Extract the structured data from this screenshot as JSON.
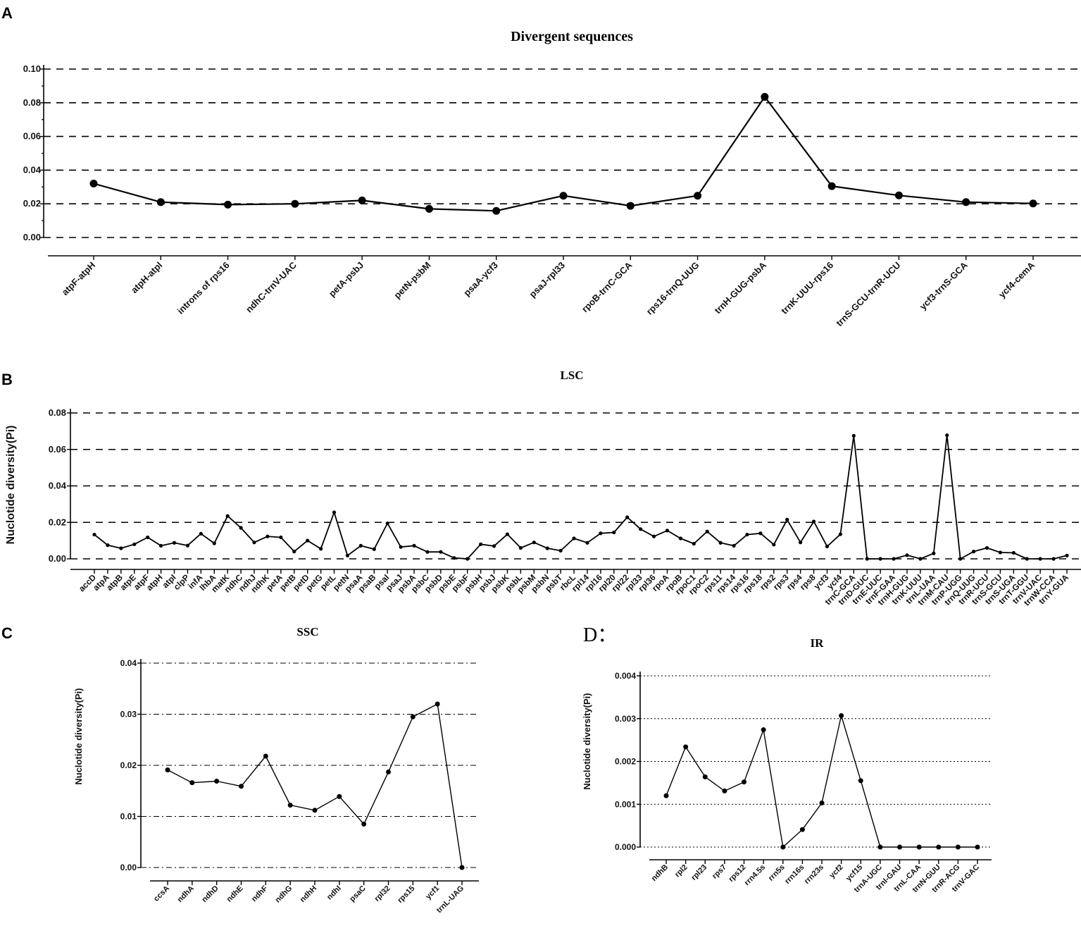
{
  "chart_data": [
    {
      "panel": "A",
      "type": "line",
      "title": "Divergent sequences",
      "xlabel": "",
      "ylabel": "",
      "ylim": [
        0,
        0.1
      ],
      "yticks": [
        "0.00",
        "0.02",
        "0.04",
        "0.06",
        "0.08",
        "0.10"
      ],
      "grid": "dashed horizontal",
      "categories": [
        "atpF-atpH",
        "atpH-atpl",
        "introns of rps16",
        "ndhC-trnV-UAC",
        "petA-psbJ",
        "petN-psbM",
        "psaA-ycf3",
        "psaJ-rpl33",
        "rpoB-trnC-GCA",
        "rps16-trnQ-UUG",
        "trnH-GUG-psbA",
        "trnK-UUU-rps16",
        "trnS-GCU-trnR-UCU",
        "ycf3-trnS-GCA",
        "ycf4-cemA"
      ],
      "values": [
        0.032,
        0.021,
        0.0195,
        0.02,
        0.022,
        0.017,
        0.0158,
        0.0248,
        0.0188,
        0.0248,
        0.0835,
        0.0305,
        0.025,
        0.021,
        0.0202
      ]
    },
    {
      "panel": "B",
      "type": "line",
      "title": "LSC",
      "xlabel": "",
      "ylabel": "Nuclotide diversity(Pi)",
      "ylim": [
        0,
        0.08
      ],
      "yticks": [
        "0.00",
        "0.02",
        "0.04",
        "0.06",
        "0.08"
      ],
      "grid": "dashed horizontal",
      "categories": [
        "accD",
        "atpA",
        "atpB",
        "atpE",
        "atpF",
        "atpH",
        "atpI",
        "clpP",
        "infA",
        "lhbA",
        "matK",
        "ndhC",
        "ndhJ",
        "ndhK",
        "petA",
        "petB",
        "petD",
        "petG",
        "petL",
        "petN",
        "psaA",
        "psaB",
        "psaI",
        "psaJ",
        "psbA",
        "psbC",
        "psbD",
        "psbE",
        "psbF",
        "psbH",
        "psbJ",
        "psbK",
        "psbL",
        "psbM",
        "psbN",
        "psbT",
        "rbcL",
        "rpl14",
        "rpl16",
        "rpl20",
        "rpl22",
        "rpl33",
        "rpl36",
        "rpoA",
        "rpoB",
        "rpoC1",
        "rpoC2",
        "rps11",
        "rps14",
        "rps16",
        "rps18",
        "rps2",
        "rps3",
        "rps4",
        "rps8",
        "ycf3",
        "ycf4",
        "trnC-GCA",
        "trnD-GUC",
        "trnE-UUC",
        "trnF-GAA",
        "trnH-GUG",
        "trnK-UUU",
        "trnL-UAA",
        "trnM-CAU",
        "trnP-UGG",
        "trnQ-UUG",
        "trnR-UCU",
        "trnS-GCU",
        "trnS-UGA",
        "trnT-GGU",
        "trnV-UAC",
        "trnW-CCA",
        "trnY-GUA"
      ],
      "values": [
        0.0133,
        0.0075,
        0.0058,
        0.008,
        0.0118,
        0.0072,
        0.0088,
        0.0073,
        0.0138,
        0.0085,
        0.0235,
        0.017,
        0.009,
        0.0123,
        0.0118,
        0.004,
        0.01,
        0.0055,
        0.0255,
        0.0018,
        0.0072,
        0.0053,
        0.0195,
        0.0065,
        0.0072,
        0.0038,
        0.0038,
        0.0005,
        0.0,
        0.008,
        0.007,
        0.0135,
        0.006,
        0.009,
        0.0058,
        0.0045,
        0.0112,
        0.0088,
        0.014,
        0.0145,
        0.0228,
        0.0163,
        0.0123,
        0.0155,
        0.0112,
        0.0083,
        0.015,
        0.0088,
        0.0072,
        0.0133,
        0.014,
        0.0078,
        0.0215,
        0.009,
        0.0205,
        0.0068,
        0.0135,
        0.0675,
        0.0,
        0.0,
        0.0,
        0.002,
        0.0,
        0.003,
        0.0678,
        0.0,
        0.004,
        0.006,
        0.0035,
        0.0033,
        0.0,
        0.0,
        0.0,
        0.0018
      ]
    },
    {
      "panel": "C",
      "type": "line",
      "title": "SSC",
      "xlabel": "",
      "ylabel": "Nuclotide diversity(Pi)",
      "ylim": [
        0,
        0.04
      ],
      "yticks": [
        "0.00",
        "0.01",
        "0.02",
        "0.03",
        "0.04"
      ],
      "grid": "dash-dot horizontal",
      "categories": [
        "ccsA",
        "ndhA",
        "ndhD",
        "ndhE",
        "ndhF",
        "ndhG",
        "ndhH",
        "ndhI",
        "psaC",
        "rpl32",
        "rps15",
        "ycf1",
        "trnL-UAG"
      ],
      "values": [
        0.0191,
        0.0166,
        0.0169,
        0.0159,
        0.0218,
        0.0122,
        0.0112,
        0.0139,
        0.0085,
        0.0187,
        0.0295,
        0.032,
        0.0
      ]
    },
    {
      "panel": "D：",
      "type": "line",
      "title": "IR",
      "xlabel": "",
      "ylabel": "Nuclotide diversity(Pi)",
      "ylim": [
        0,
        0.004
      ],
      "yticks": [
        "0.000",
        "0.001",
        "0.002",
        "0.003",
        "0.004"
      ],
      "grid": "dotted horizontal",
      "categories": [
        "ndhB",
        "rpl2",
        "rpl23",
        "rps7",
        "rps12",
        "rrn4.5s",
        "rrn5s",
        "rrn16s",
        "rrn23s",
        "ycf2",
        "ycf15",
        "trnA-UGC",
        "trnI-GAU",
        "trnL-CAA",
        "trnN-GUU",
        "trnR-ACG",
        "trnV-GAC"
      ],
      "values": [
        0.0012,
        0.00234,
        0.00164,
        0.00131,
        0.00152,
        0.00274,
        0.0,
        0.00041,
        0.00103,
        0.00307,
        0.00155,
        0.0,
        0.0,
        0.0,
        0.0,
        0.0,
        0.0
      ]
    }
  ]
}
